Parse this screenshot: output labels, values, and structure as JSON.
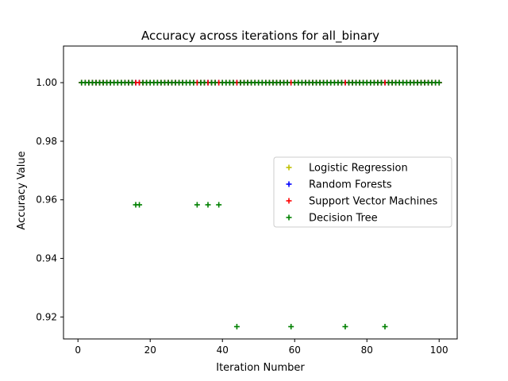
{
  "chart_data": {
    "type": "scatter",
    "title": "Accuracy across iterations for all_binary",
    "xlabel": "Iteration Number",
    "ylabel": "Accuracy Value",
    "xlim": [
      -4,
      105
    ],
    "ylim": [
      0.9125,
      1.0125
    ],
    "xticks": [
      0,
      20,
      40,
      60,
      80,
      100
    ],
    "xtick_labels": [
      "0",
      "20",
      "40",
      "60",
      "80",
      "100"
    ],
    "yticks": [
      0.92,
      0.94,
      0.96,
      0.98,
      1.0
    ],
    "ytick_labels": [
      "0.92",
      "0.94",
      "0.96",
      "0.98",
      "1.00"
    ],
    "grid": false,
    "legend_position": "center-right",
    "marker": "+",
    "series": [
      {
        "name": "Logistic Regression",
        "color": "#bfbf00",
        "x": [
          1,
          2,
          3,
          4,
          5,
          6,
          7,
          8,
          9,
          10,
          11,
          12,
          13,
          14,
          15,
          16,
          17,
          18,
          19,
          20,
          21,
          22,
          23,
          24,
          25,
          26,
          27,
          28,
          29,
          30,
          31,
          32,
          33,
          34,
          35,
          36,
          37,
          38,
          39,
          40,
          41,
          42,
          43,
          44,
          45,
          46,
          47,
          48,
          49,
          50,
          51,
          52,
          53,
          54,
          55,
          56,
          57,
          58,
          59,
          60,
          61,
          62,
          63,
          64,
          65,
          66,
          67,
          68,
          69,
          70,
          71,
          72,
          73,
          74,
          75,
          76,
          77,
          78,
          79,
          80,
          81,
          82,
          83,
          84,
          85,
          86,
          87,
          88,
          89,
          90,
          91,
          92,
          93,
          94,
          95,
          96,
          97,
          98,
          99,
          100
        ],
        "y": [
          1,
          1,
          1,
          1,
          1,
          1,
          1,
          1,
          1,
          1,
          1,
          1,
          1,
          1,
          1,
          1,
          1,
          1,
          1,
          1,
          1,
          1,
          1,
          1,
          1,
          1,
          1,
          1,
          1,
          1,
          1,
          1,
          1,
          1,
          1,
          1,
          1,
          1,
          1,
          1,
          1,
          1,
          1,
          1,
          1,
          1,
          1,
          1,
          1,
          1,
          1,
          1,
          1,
          1,
          1,
          1,
          1,
          1,
          1,
          1,
          1,
          1,
          1,
          1,
          1,
          1,
          1,
          1,
          1,
          1,
          1,
          1,
          1,
          1,
          1,
          1,
          1,
          1,
          1,
          1,
          1,
          1,
          1,
          1,
          1,
          1,
          1,
          1,
          1,
          1,
          1,
          1,
          1,
          1,
          1,
          1,
          1,
          1,
          1,
          1
        ]
      },
      {
        "name": "Random Forests",
        "color": "#0000ff",
        "x": [
          1,
          2,
          3,
          4,
          5,
          6,
          7,
          8,
          9,
          10,
          11,
          12,
          13,
          14,
          15,
          16,
          17,
          18,
          19,
          20,
          21,
          22,
          23,
          24,
          25,
          26,
          27,
          28,
          29,
          30,
          31,
          32,
          33,
          34,
          35,
          36,
          37,
          38,
          39,
          40,
          41,
          42,
          43,
          44,
          45,
          46,
          47,
          48,
          49,
          50,
          51,
          52,
          53,
          54,
          55,
          56,
          57,
          58,
          59,
          60,
          61,
          62,
          63,
          64,
          65,
          66,
          67,
          68,
          69,
          70,
          71,
          72,
          73,
          74,
          75,
          76,
          77,
          78,
          79,
          80,
          81,
          82,
          83,
          84,
          85,
          86,
          87,
          88,
          89,
          90,
          91,
          92,
          93,
          94,
          95,
          96,
          97,
          98,
          99,
          100
        ],
        "y": [
          1,
          1,
          1,
          1,
          1,
          1,
          1,
          1,
          1,
          1,
          1,
          1,
          1,
          1,
          1,
          1,
          1,
          1,
          1,
          1,
          1,
          1,
          1,
          1,
          1,
          1,
          1,
          1,
          1,
          1,
          1,
          1,
          1,
          1,
          1,
          1,
          1,
          1,
          1,
          1,
          1,
          1,
          1,
          1,
          1,
          1,
          1,
          1,
          1,
          1,
          1,
          1,
          1,
          1,
          1,
          1,
          1,
          1,
          1,
          1,
          1,
          1,
          1,
          1,
          1,
          1,
          1,
          1,
          1,
          1,
          1,
          1,
          1,
          1,
          1,
          1,
          1,
          1,
          1,
          1,
          1,
          1,
          1,
          1,
          1,
          1,
          1,
          1,
          1,
          1,
          1,
          1,
          1,
          1,
          1,
          1,
          1,
          1,
          1,
          1
        ]
      },
      {
        "name": "Support Vector Machines",
        "color": "#ff0000",
        "x": [
          1,
          2,
          3,
          4,
          5,
          6,
          7,
          8,
          9,
          10,
          11,
          12,
          13,
          14,
          15,
          16,
          17,
          18,
          19,
          20,
          21,
          22,
          23,
          24,
          25,
          26,
          27,
          28,
          29,
          30,
          31,
          32,
          33,
          34,
          35,
          36,
          37,
          38,
          39,
          40,
          41,
          42,
          43,
          44,
          45,
          46,
          47,
          48,
          49,
          50,
          51,
          52,
          53,
          54,
          55,
          56,
          57,
          58,
          59,
          60,
          61,
          62,
          63,
          64,
          65,
          66,
          67,
          68,
          69,
          70,
          71,
          72,
          73,
          74,
          75,
          76,
          77,
          78,
          79,
          80,
          81,
          82,
          83,
          84,
          85,
          86,
          87,
          88,
          89,
          90,
          91,
          92,
          93,
          94,
          95,
          96,
          97,
          98,
          99,
          100
        ],
        "y": [
          1,
          1,
          1,
          1,
          1,
          1,
          1,
          1,
          1,
          1,
          1,
          1,
          1,
          1,
          1,
          1,
          1,
          1,
          1,
          1,
          1,
          1,
          1,
          1,
          1,
          1,
          1,
          1,
          1,
          1,
          1,
          1,
          1,
          1,
          1,
          1,
          1,
          1,
          1,
          1,
          1,
          1,
          1,
          1,
          1,
          1,
          1,
          1,
          1,
          1,
          1,
          1,
          1,
          1,
          1,
          1,
          1,
          1,
          1,
          1,
          1,
          1,
          1,
          1,
          1,
          1,
          1,
          1,
          1,
          1,
          1,
          1,
          1,
          1,
          1,
          1,
          1,
          1,
          1,
          1,
          1,
          1,
          1,
          1,
          1,
          1,
          1,
          1,
          1,
          1,
          1,
          1,
          1,
          1,
          1,
          1,
          1,
          1,
          1,
          1
        ]
      },
      {
        "name": "Decision Tree",
        "color": "#008000",
        "x": [
          1,
          2,
          3,
          4,
          5,
          6,
          7,
          8,
          9,
          10,
          11,
          12,
          13,
          14,
          15,
          16,
          17,
          18,
          19,
          20,
          21,
          22,
          23,
          24,
          25,
          26,
          27,
          28,
          29,
          30,
          31,
          32,
          33,
          34,
          35,
          36,
          37,
          38,
          39,
          40,
          41,
          42,
          43,
          44,
          45,
          46,
          47,
          48,
          49,
          50,
          51,
          52,
          53,
          54,
          55,
          56,
          57,
          58,
          59,
          60,
          61,
          62,
          63,
          64,
          65,
          66,
          67,
          68,
          69,
          70,
          71,
          72,
          73,
          74,
          75,
          76,
          77,
          78,
          79,
          80,
          81,
          82,
          83,
          84,
          85,
          86,
          87,
          88,
          89,
          90,
          91,
          92,
          93,
          94,
          95,
          96,
          97,
          98,
          99,
          100
        ],
        "y": [
          1,
          1,
          1,
          1,
          1,
          1,
          1,
          1,
          1,
          1,
          1,
          1,
          1,
          1,
          1,
          0.9583,
          0.9583,
          1,
          1,
          1,
          1,
          1,
          1,
          1,
          1,
          1,
          1,
          1,
          1,
          1,
          1,
          1,
          0.9583,
          1,
          1,
          0.9583,
          1,
          1,
          0.9583,
          1,
          1,
          1,
          1,
          0.9167,
          1,
          1,
          1,
          1,
          1,
          1,
          1,
          1,
          1,
          1,
          1,
          1,
          1,
          1,
          0.9167,
          1,
          1,
          1,
          1,
          1,
          1,
          1,
          1,
          1,
          1,
          1,
          1,
          1,
          1,
          0.9167,
          1,
          1,
          1,
          1,
          1,
          1,
          1,
          1,
          1,
          1,
          0.9167,
          1,
          1,
          1,
          1,
          1,
          1,
          1,
          1,
          1,
          1,
          1,
          1,
          1,
          1,
          1
        ]
      }
    ]
  }
}
